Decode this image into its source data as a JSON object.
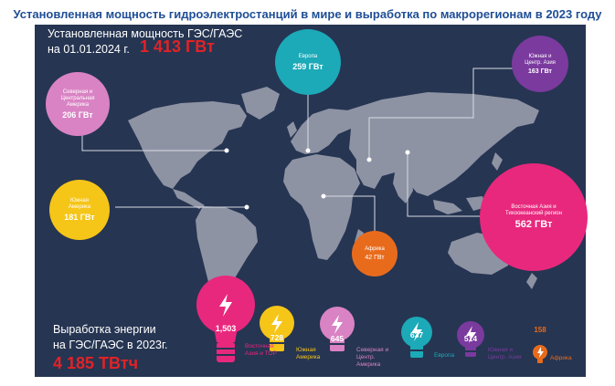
{
  "title": "Установленная мощность гидроэлектростанций в мире и выработка по макрорегионам в 2023 году",
  "capacity": {
    "label_line1": "Установленная мощность ГЭС/ГАЭС",
    "label_line2": "на 01.01.2024 г.",
    "total": "1 413 ГВт"
  },
  "regions": [
    {
      "name": "Европа",
      "value": "259 ГВт",
      "color": "#1ca9b8"
    },
    {
      "name": "Южная и Центр. Азия",
      "value": "163 ГВт",
      "color": "#7a3a9e"
    },
    {
      "name": "Северная и Центральная Америка",
      "value": "206 ГВт",
      "color": "#d983c4"
    },
    {
      "name": "Южная Америка",
      "value": "181 ГВт",
      "color": "#f5c518"
    },
    {
      "name": "Восточная Азия и Тихоокеанский регион",
      "value": "562 ГВт",
      "color": "#e8287d"
    },
    {
      "name": "Африка",
      "value": "42 ГВт",
      "color": "#e86b1c"
    }
  ],
  "generation": {
    "label_line1": "Выработка энергии",
    "label_line2": "на ГЭС/ГАЭС в 2023г.",
    "total": "4 185 ТВтч",
    "bulbs": [
      {
        "value": "1,503",
        "label": "Восточная Азия и ТОР",
        "color": "#e8287d"
      },
      {
        "value": "728",
        "label": "Южная Америка",
        "color": "#f5c518"
      },
      {
        "value": "645",
        "label": "Северная и Центр. Америка",
        "color": "#d983c4"
      },
      {
        "value": "637",
        "label": "Европа",
        "color": "#1ca9b8"
      },
      {
        "value": "514",
        "label": "Южная и Центр. Азия",
        "color": "#7a3a9e"
      },
      {
        "value": "158",
        "label": "Африка",
        "color": "#e86b1c"
      }
    ]
  }
}
